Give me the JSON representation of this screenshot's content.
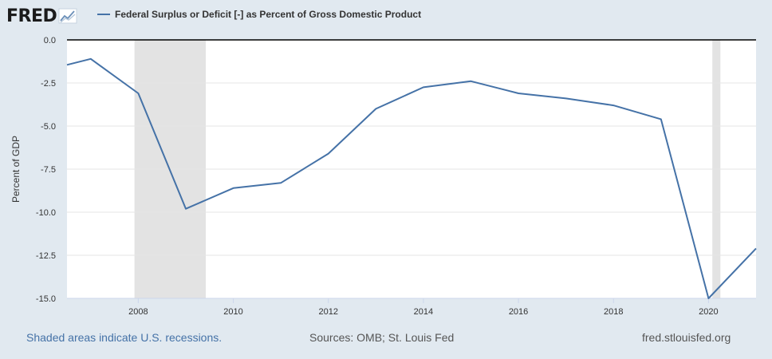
{
  "header": {
    "logo_text": "FRED",
    "logo_icon": "chart-line-icon"
  },
  "legend": {
    "label": "Federal Surplus or Deficit [-] as Percent of Gross Domestic Product",
    "color": "#4572a7"
  },
  "footer": {
    "recession_note": "Shaded areas indicate U.S. recessions.",
    "sources": "Sources: OMB; St. Louis Fed",
    "site": "fred.stlouisfed.org"
  },
  "chart_data": {
    "type": "line",
    "ylabel": "Percent of GDP",
    "xlabel": "",
    "ylim": [
      -15,
      0
    ],
    "yticks": [
      0,
      -2.5,
      -5,
      -7.5,
      -10,
      -12.5,
      -15
    ],
    "ytick_labels": [
      "0.0",
      "-2.5",
      "-5.0",
      "-7.5",
      "-10.0",
      "-12.5",
      "-15.0"
    ],
    "xlim": [
      2006.5,
      2021.0
    ],
    "xticks": [
      2008,
      2010,
      2012,
      2014,
      2016,
      2018,
      2020
    ],
    "xtick_labels": [
      "2008",
      "2010",
      "2012",
      "2014",
      "2016",
      "2018",
      "2020"
    ],
    "grid": true,
    "recessions": [
      [
        2007.92,
        2009.42
      ],
      [
        2020.08,
        2020.25
      ]
    ],
    "series": [
      {
        "name": "Federal Surplus or Deficit [-] as Percent of Gross Domestic Product",
        "color": "#4572a7",
        "x": [
          2006.5,
          2007,
          2008,
          2009,
          2010,
          2011,
          2012,
          2013,
          2014,
          2015,
          2016,
          2017,
          2018,
          2019,
          2020,
          2021
        ],
        "values": [
          -1.45,
          -1.1,
          -3.1,
          -9.8,
          -8.6,
          -8.3,
          -6.6,
          -4.0,
          -2.75,
          -2.4,
          -3.1,
          -3.4,
          -3.8,
          -4.6,
          -15.0,
          -12.1
        ]
      }
    ]
  }
}
